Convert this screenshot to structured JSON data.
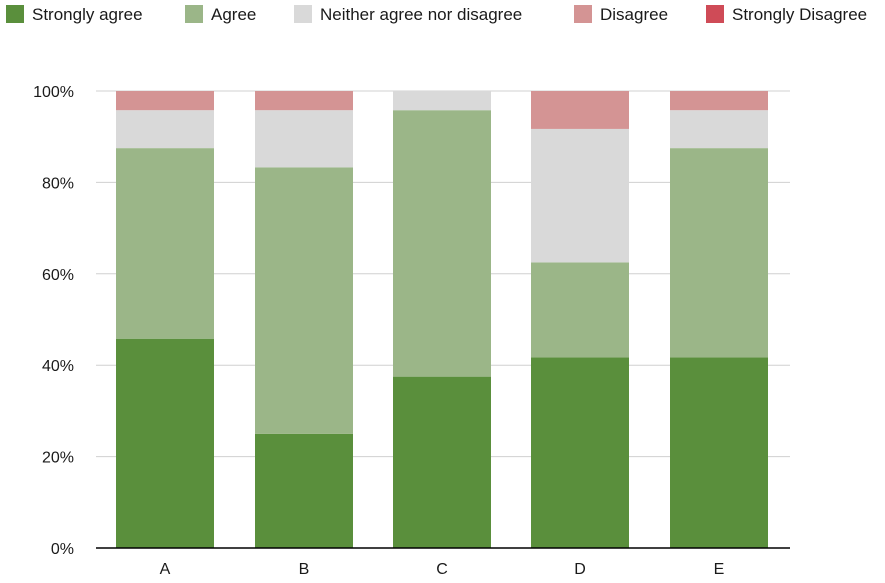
{
  "chart_data": {
    "type": "bar",
    "stacked": true,
    "normalized_percent": true,
    "title": "",
    "xlabel": "",
    "ylabel": "",
    "categories": [
      "A",
      "B",
      "C",
      "D",
      "E"
    ],
    "ylim": [
      0,
      100
    ],
    "yticks": [
      "0%",
      "20%",
      "40%",
      "60%",
      "80%",
      "100%"
    ],
    "ytick_values": [
      0,
      20,
      40,
      60,
      80,
      100
    ],
    "grid": true,
    "legend_position": "top",
    "series": [
      {
        "name": "Strongly agree",
        "color": "#5a8f3c",
        "values": [
          45.8,
          25.0,
          37.5,
          41.7,
          41.7
        ]
      },
      {
        "name": "Agree",
        "color": "#9bb688",
        "values": [
          41.7,
          58.3,
          58.3,
          20.8,
          45.8
        ]
      },
      {
        "name": "Neither agree nor disagree",
        "color": "#d9d9d9",
        "values": [
          8.3,
          12.5,
          4.2,
          29.2,
          8.3
        ]
      },
      {
        "name": "Disagree",
        "color": "#d49494",
        "values": [
          4.2,
          4.2,
          0,
          8.3,
          4.2
        ]
      },
      {
        "name": "Strongly Disagree",
        "color": "#cf4b57",
        "values": [
          0,
          0,
          0,
          0,
          0
        ]
      }
    ]
  }
}
